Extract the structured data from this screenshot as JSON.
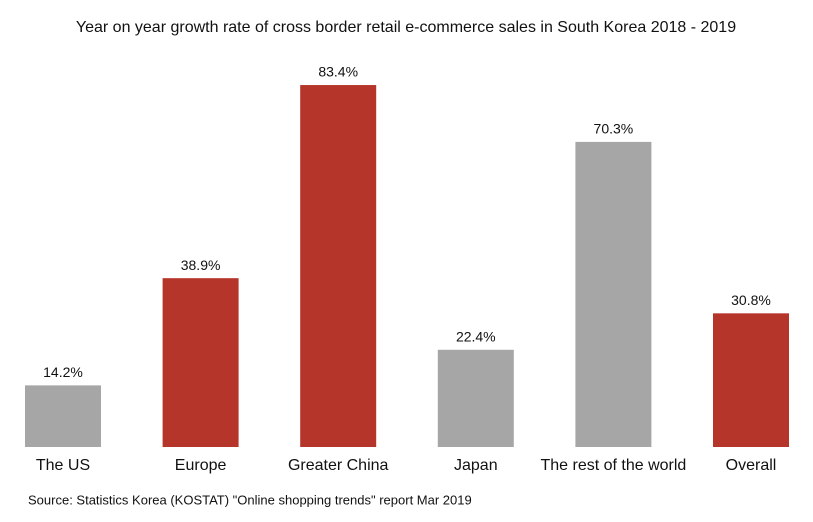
{
  "chart_data": {
    "type": "bar",
    "title": "Year on year growth rate of cross border retail e-commerce sales in South Korea 2018 - 2019",
    "categories": [
      "The US",
      "Europe",
      "Greater China",
      "Japan",
      "The rest of the world",
      "Overall"
    ],
    "values": [
      14.2,
      38.9,
      83.4,
      22.4,
      70.3,
      30.8
    ],
    "value_labels": [
      "14.2%",
      "38.9%",
      "83.4%",
      "22.4%",
      "70.3%",
      "30.8%"
    ],
    "colors": [
      "#a6a6a6",
      "#b5352a",
      "#b5352a",
      "#a6a6a6",
      "#a6a6a6",
      "#b5352a"
    ],
    "source": "Source: Statistics Korea (KOSTAT) \"Online shopping trends\" report Mar 2019"
  }
}
